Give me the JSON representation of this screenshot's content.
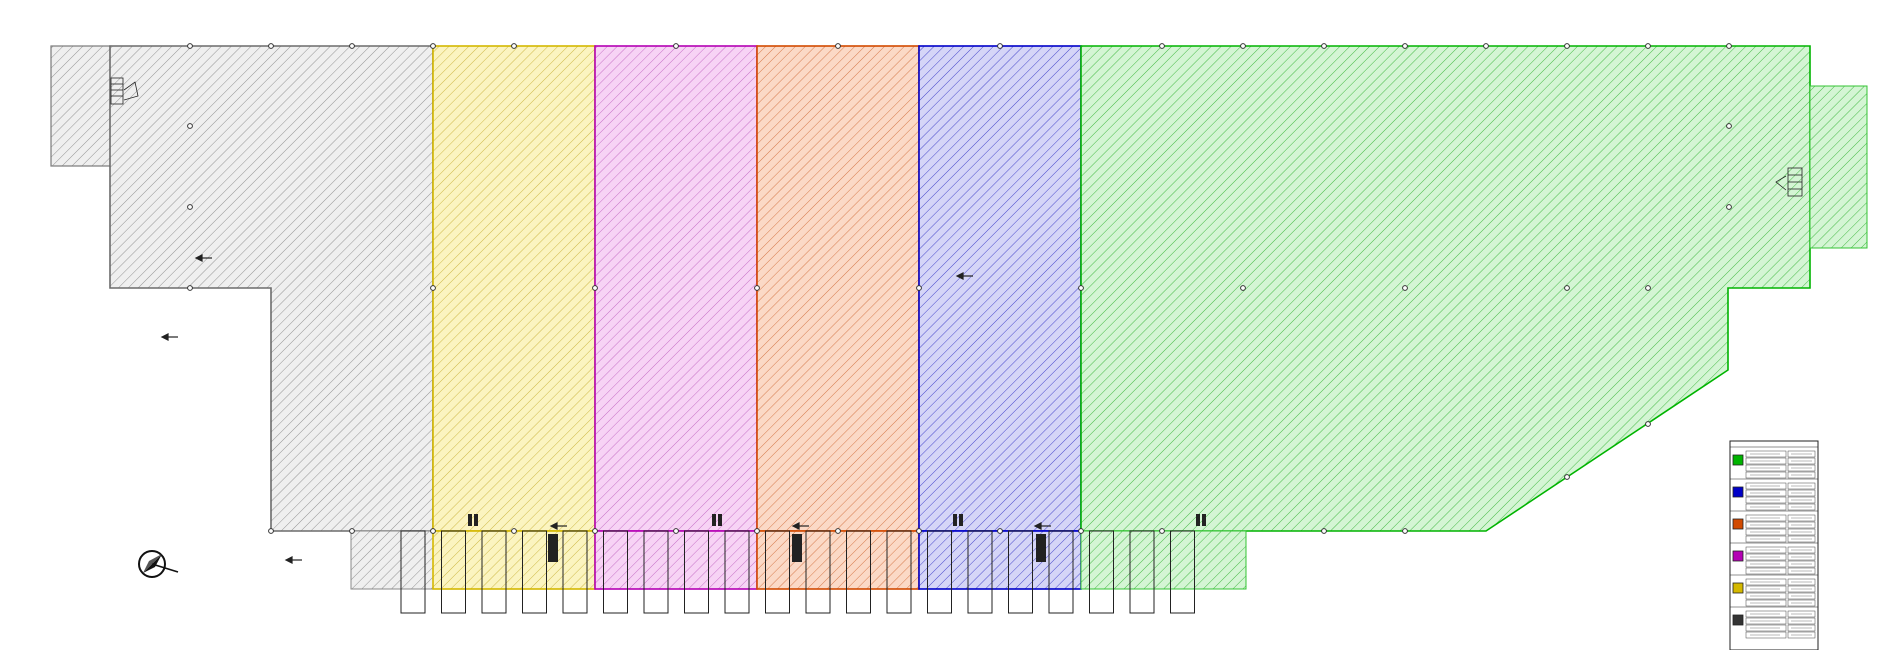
{
  "drawing": {
    "zones": [
      {
        "id": "gray",
        "stroke": "#6b6b6b",
        "fill": "#e9e9e9",
        "hatch": "#8a8a8a"
      },
      {
        "id": "yellow",
        "stroke": "#d4b800",
        "fill": "#fbf4c0",
        "hatch": "#c9b23a"
      },
      {
        "id": "pink",
        "stroke": "#b400b4",
        "fill": "#f7d3f5",
        "hatch": "#c266c2"
      },
      {
        "id": "orange",
        "stroke": "#d24a00",
        "fill": "#fbd9c6",
        "hatch": "#d2703f"
      },
      {
        "id": "blue",
        "stroke": "#0000c8",
        "fill": "#d5d5f7",
        "hatch": "#3a3ac8"
      },
      {
        "id": "green",
        "stroke": "#00b400",
        "fill": "#d4f5d4",
        "hatch": "#34b434"
      }
    ],
    "legend_colors": [
      "#00b400",
      "#0000c8",
      "#d24a00",
      "#b400b4",
      "#d4b800",
      "#333333"
    ],
    "north_arrow": "north-arrow-icon",
    "dock_door_count": 20
  }
}
